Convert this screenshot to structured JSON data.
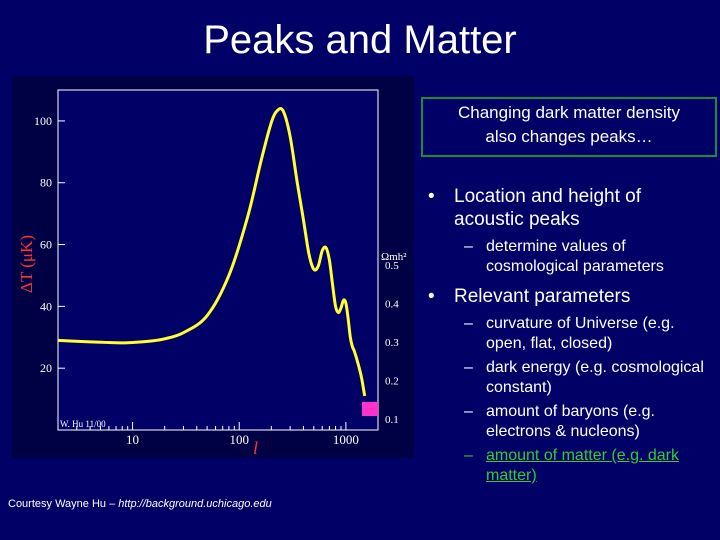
{
  "title": "Peaks and Matter",
  "callout": {
    "line1": "Changing dark matter density",
    "line2": "also changes peaks…"
  },
  "bullets": [
    {
      "text": "Location and height of acoustic peaks",
      "subs": [
        {
          "text": "determine values of cosmological parameters",
          "highlight": false
        }
      ]
    },
    {
      "text": "Relevant parameters",
      "subs": [
        {
          "text": "curvature of Universe (e.g. open, flat, closed)",
          "highlight": false
        },
        {
          "text": "dark energy (e.g. cosmological constant)",
          "highlight": false
        },
        {
          "text": "amount of baryons (e.g. electrons & nucleons)",
          "highlight": false
        },
        {
          "text": "amount of matter (e.g. dark matter)",
          "highlight": true
        }
      ]
    }
  ],
  "credit": {
    "prefix": "Courtesy Wayne Hu – ",
    "url": "http://background.uchicago.edu"
  },
  "colors": {
    "background": "#000066",
    "curve": "#ffff33",
    "slider": "#ff33cc",
    "callout_border": "#1f8a3a",
    "highlight": "#33cc33",
    "axis_label": "#ff3333",
    "axis": "#ffffff"
  },
  "chart_data": {
    "type": "line",
    "xscale": "log",
    "xlim": [
      2,
      2000
    ],
    "ylim": [
      0,
      110
    ],
    "xticks": [
      10,
      100,
      1000
    ],
    "yticks": [
      20,
      40,
      60,
      80,
      100
    ],
    "xlabel": "l",
    "ylabel": "ΔT (μK)",
    "corner_label": "W. Hu 11/00",
    "series": [
      {
        "x": [
          2,
          4,
          6,
          8,
          10,
          15,
          20,
          30,
          50,
          80,
          120,
          160,
          200,
          230,
          260,
          300,
          350,
          400,
          450,
          500,
          550,
          600,
          650,
          700,
          750,
          800,
          850,
          900,
          950,
          1000,
          1050,
          1100,
          1150,
          1200,
          1300,
          1400,
          1500
        ],
        "y": [
          29,
          28.5,
          28.3,
          28.2,
          28.3,
          28.8,
          29.5,
          31.5,
          37,
          50,
          69,
          87,
          99.5,
          103.5,
          103,
          95,
          80,
          68,
          57,
          52,
          53,
          58,
          59,
          55,
          47,
          40,
          38,
          39.5,
          42,
          41,
          36,
          30,
          27,
          25.5,
          21.5,
          17,
          11
        ]
      }
    ],
    "slider": {
      "label": "Ωmh²",
      "ticks": [
        0.5,
        0.4,
        0.3,
        0.2,
        0.1
      ]
    }
  }
}
